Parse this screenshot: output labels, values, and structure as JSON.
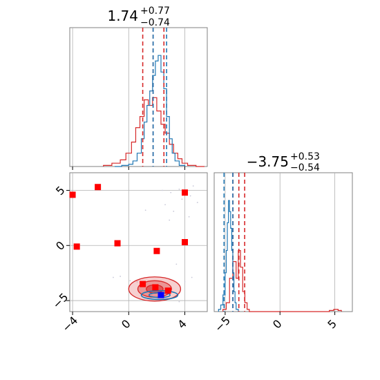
{
  "colors": {
    "truth_marker": "#ff0000",
    "truth_marker_alt": "#0000ff",
    "hist_blue": "#1f77b4",
    "hist_red": "#d62728",
    "quantile_red": "#d62728",
    "quantile_blue": "#1f77b4",
    "grid": "#b0b0b0",
    "scatter": "#c8c8d8"
  },
  "chart_data": [
    {
      "type": "histogram",
      "panel": "param-1-marginal",
      "title_value": "1.74",
      "title_plus": "+0.77",
      "title_minus": "−0.74",
      "xlim": [
        -4.2,
        5.6
      ],
      "grid": true,
      "quantiles_red": [
        1.0,
        1.74,
        2.51
      ],
      "quantiles_blue": [
        1.74,
        2.7
      ],
      "series": [
        {
          "color": "blue",
          "bins": [
            -1.0,
            -0.5,
            0.0,
            0.3,
            0.6,
            0.9,
            1.1,
            1.3,
            1.5,
            1.7,
            1.9,
            2.1,
            2.3,
            2.5,
            2.7,
            2.9,
            3.1,
            3.3,
            3.6,
            4.0
          ],
          "counts": [
            0.0,
            0.01,
            0.02,
            0.05,
            0.12,
            0.25,
            0.4,
            0.55,
            0.68,
            0.82,
            0.95,
            1.0,
            0.85,
            0.7,
            0.45,
            0.25,
            0.12,
            0.05,
            0.01
          ]
        },
        {
          "color": "red",
          "bins": [
            -1.8,
            -1.2,
            -0.6,
            -0.2,
            0.2,
            0.5,
            0.8,
            1.1,
            1.4,
            1.7,
            2.0,
            2.3,
            2.6,
            2.9,
            3.2,
            3.5,
            3.8,
            4.2,
            4.8,
            5.4
          ],
          "counts": [
            0.01,
            0.03,
            0.06,
            0.12,
            0.22,
            0.35,
            0.45,
            0.6,
            0.55,
            0.62,
            0.5,
            0.38,
            0.3,
            0.2,
            0.12,
            0.07,
            0.03,
            0.01,
            0.0
          ]
        }
      ]
    },
    {
      "type": "histogram",
      "panel": "param-2-marginal",
      "title_value": "−3.75",
      "title_plus": "+0.53",
      "title_minus": "−0.54",
      "xlim": [
        -6.0,
        6.6
      ],
      "xticks": [
        -5,
        0,
        5
      ],
      "xtick_labels": [
        "−5",
        "0",
        "5"
      ],
      "grid": true,
      "quantiles_red": [
        -4.29,
        -3.75,
        -3.22
      ],
      "quantiles_blue": [
        -5.1,
        -4.3
      ],
      "series": [
        {
          "color": "blue",
          "bins": [
            -5.6,
            -5.4,
            -5.2,
            -5.0,
            -4.9,
            -4.8,
            -4.7,
            -4.6,
            -4.5,
            -4.4,
            -4.3,
            -4.2,
            -4.1,
            -4.0,
            -3.8
          ],
          "counts": [
            0.02,
            0.06,
            0.15,
            0.35,
            0.55,
            0.8,
            1.0,
            0.9,
            0.75,
            0.55,
            0.35,
            0.18,
            0.08,
            0.02
          ]
        },
        {
          "color": "red",
          "bins": [
            -5.2,
            -4.9,
            -4.6,
            -4.3,
            -4.0,
            -3.8,
            -3.6,
            -3.4,
            -3.2,
            -3.0,
            -2.8,
            4.5,
            4.9,
            5.3,
            5.6
          ],
          "counts": [
            0.02,
            0.08,
            0.3,
            0.45,
            0.3,
            0.55,
            0.4,
            0.18,
            0.08,
            0.02,
            0.0,
            0.01,
            0.02,
            0.01
          ]
        }
      ]
    },
    {
      "type": "scatter",
      "panel": "joint",
      "xlim": [
        -4.2,
        5.6
      ],
      "ylim": [
        -6.0,
        6.6
      ],
      "xticks": [
        -4,
        0,
        4
      ],
      "xtick_labels": [
        "−4",
        "0",
        "4"
      ],
      "yticks": [
        -5,
        0,
        5
      ],
      "ytick_labels": [
        "−5",
        "0",
        "5"
      ],
      "grid": true,
      "red_squares": [
        {
          "x": -4.0,
          "y": 4.6
        },
        {
          "x": -2.2,
          "y": 5.3
        },
        {
          "x": 4.0,
          "y": 4.8
        },
        {
          "x": -3.7,
          "y": -0.1
        },
        {
          "x": -0.8,
          "y": 0.2
        },
        {
          "x": 2.0,
          "y": -0.5
        },
        {
          "x": 4.0,
          "y": 0.3
        },
        {
          "x": 1.0,
          "y": -3.5
        },
        {
          "x": 1.9,
          "y": -3.8
        },
        {
          "x": 2.8,
          "y": -4.1
        }
      ],
      "blue_squares": [
        {
          "x": 2.3,
          "y": -4.5
        }
      ],
      "scatter_points": [
        {
          "x": 3.0,
          "y": 4.8
        },
        {
          "x": 3.6,
          "y": 5.1
        },
        {
          "x": 4.4,
          "y": 4.5
        },
        {
          "x": 2.6,
          "y": 3.7
        },
        {
          "x": 3.2,
          "y": 3.1
        },
        {
          "x": 4.6,
          "y": 5.4
        },
        {
          "x": 3.8,
          "y": 4.2
        },
        {
          "x": 4.9,
          "y": 3.9
        },
        {
          "x": 2.4,
          "y": 5.0
        },
        {
          "x": 1.2,
          "y": 3.2
        },
        {
          "x": 3.4,
          "y": -1.7
        },
        {
          "x": -0.6,
          "y": -2.8
        },
        {
          "x": 4.5,
          "y": -2.9
        },
        {
          "x": 0.1,
          "y": -3.2
        },
        {
          "x": 4.0,
          "y": -3.3
        },
        {
          "x": 3.6,
          "y": -5.1
        },
        {
          "x": -1.1,
          "y": -2.9
        },
        {
          "x": 0.6,
          "y": -3.3
        },
        {
          "x": 4.3,
          "y": 2.6
        },
        {
          "x": 2.9,
          "y": 2.3
        }
      ],
      "contours_red": [
        {
          "cx": 1.85,
          "cy": -3.95,
          "rx": 1.85,
          "ry": 1.1,
          "level": "outer"
        },
        {
          "cx": 1.85,
          "cy": -3.95,
          "rx": 1.2,
          "ry": 0.75,
          "level": "middle"
        },
        {
          "cx": 1.85,
          "cy": -3.95,
          "rx": 0.6,
          "ry": 0.38,
          "level": "inner"
        }
      ],
      "contours_blue": [
        {
          "cx": 2.2,
          "cy": -4.5,
          "rx": 1.3,
          "ry": 0.4,
          "level": "outer"
        },
        {
          "cx": 2.2,
          "cy": -4.5,
          "rx": 0.75,
          "ry": 0.22,
          "level": "inner"
        }
      ]
    }
  ]
}
